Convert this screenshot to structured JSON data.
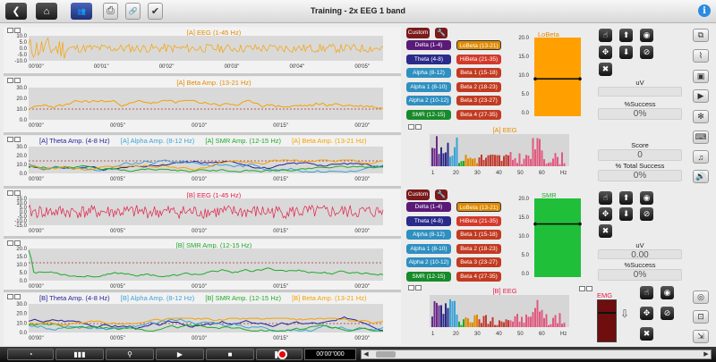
{
  "window": {
    "title": "Training - 2x EEG 1 band",
    "info_label": "i"
  },
  "top_toolbar": {
    "back": "❮",
    "home": "⌂",
    "users": "👥",
    "save": "⎙",
    "link": "🔗",
    "check": "✔"
  },
  "colors": {
    "eeg_orange": "#f5a200",
    "eeg_red": "#e0204a",
    "smr_green": "#1faa2a",
    "theta_navy": "#26229a",
    "alpha_cyan": "#3ba3d6",
    "gauge_orange": "#ffa000",
    "gauge_green": "#1fbf3a",
    "emg_dark": "#6e0e0e"
  },
  "channel_a": {
    "eeg": {
      "title": "[A] EEG (1-45 Hz)",
      "yticks": [
        "10.0",
        "5.0",
        "0.0",
        "-5.0",
        "-10.0"
      ],
      "xticks": [
        "00'00''",
        "00'01''",
        "00'02''",
        "00'03''",
        "00'04''",
        "00'05''"
      ]
    },
    "beta": {
      "title": "[A] Beta Amp. (13-21 Hz)",
      "yticks": [
        "30.0",
        "20.0",
        "10.0",
        "0.0"
      ],
      "xticks": [
        "00'00''",
        "00'05''",
        "00'10''",
        "00'15''",
        "00'20''"
      ]
    },
    "multi": {
      "legend": [
        "[A] Theta Amp. (4-8 Hz)",
        "[A] Alpha Amp. (8-12 Hz)",
        "[A] SMR Amp. (12-15 Hz)",
        "[A] Beta Amp. (13-21 Hz)"
      ],
      "yticks": [
        "30.0",
        "20.0",
        "10.0",
        "0.0"
      ],
      "xticks": [
        "00'00''",
        "00'05''",
        "00'10''",
        "00'15''",
        "00'20''"
      ]
    },
    "bands": {
      "custom": "Custom",
      "left": [
        "Delta (1-4)",
        "Theta (4-8)",
        "Alpha (8-12)",
        "Alpha 1 (8-10)",
        "Alpha 2 (10-12)",
        "SMR (12-15)"
      ],
      "right": [
        "LoBeta (13-21)",
        "HiBeta (21-35)",
        "Beta 1 (15-18)",
        "Beta 2 (18-23)",
        "Beta 3 (23-27)",
        "Beta 4 (27-35)"
      ]
    },
    "spectrum": {
      "title": "[A] EEG",
      "xticks": [
        "1",
        "20",
        "30",
        "40",
        "50",
        "60",
        "Hz"
      ]
    },
    "gauge": {
      "title": "LoBeta",
      "yticks": [
        "20.0",
        "15.0",
        "10.0",
        "5.0",
        "0.0"
      ],
      "level": 9.5
    },
    "readouts": {
      "uv_label": "uV",
      "uv_value": "",
      "success_label": "%Success",
      "success_value": "0%"
    }
  },
  "score": {
    "label": "Score",
    "value": "0",
    "total_label": "% Total Success",
    "total_value": "0%"
  },
  "channel_b": {
    "eeg": {
      "title": "[B] EEG (1-45 Hz)",
      "yticks": [
        "15.0",
        "10.0",
        "5.0",
        "0.0",
        "-5.0",
        "-10.0",
        "-15.0"
      ],
      "xticks": [
        "00'00''",
        "00'05''",
        "00'10''",
        "00'15''",
        "00'20''"
      ]
    },
    "smr": {
      "title": "[B] SMR Amp. (12-15 Hz)",
      "yticks": [
        "20.0",
        "15.0",
        "10.0",
        "5.0",
        "0.0"
      ],
      "xticks": [
        "00'00''",
        "00'05''",
        "00'10''",
        "00'15''",
        "00'20''"
      ]
    },
    "multi": {
      "legend": [
        "[B] Theta Amp. (4-8 Hz)",
        "[B] Alpha Amp. (8-12 Hz)",
        "[B] SMR Amp. (12-15 Hz)",
        "[B] Beta Amp. (13-21 Hz)"
      ],
      "yticks": [
        "30.0",
        "20.0",
        "10.0",
        "0.0"
      ],
      "xticks": [
        "00'00''",
        "00'05''",
        "00'10''",
        "00'15''",
        "00'20''"
      ]
    },
    "bands": {
      "custom": "Custom",
      "left": [
        "Delta (1-4)",
        "Theta (4-8)",
        "Alpha (8-12)",
        "Alpha 1 (8-10)",
        "Alpha 2 (10-12)",
        "SMR (12-15)"
      ],
      "right": [
        "LoBeta (13-21)",
        "HiBeta (21-35)",
        "Beta 1 (15-18)",
        "Beta 2 (18-23)",
        "Beta 3 (23-27)",
        "Beta 4 (27-35)"
      ]
    },
    "spectrum": {
      "title": "[B] EEG",
      "xticks": [
        "1",
        "20",
        "30",
        "40",
        "50",
        "60",
        "Hz"
      ]
    },
    "gauge": {
      "title": "SMR",
      "yticks": [
        "20.0",
        "15.0",
        "10.0",
        "5.0",
        "0.0"
      ],
      "level": 13.5
    },
    "readouts": {
      "uv_label": "uV",
      "uv_value": "0.00",
      "success_label": "%Success",
      "success_value": "0%"
    }
  },
  "emg": {
    "title": "EMG"
  },
  "playback": {
    "time": "00'00''000"
  }
}
